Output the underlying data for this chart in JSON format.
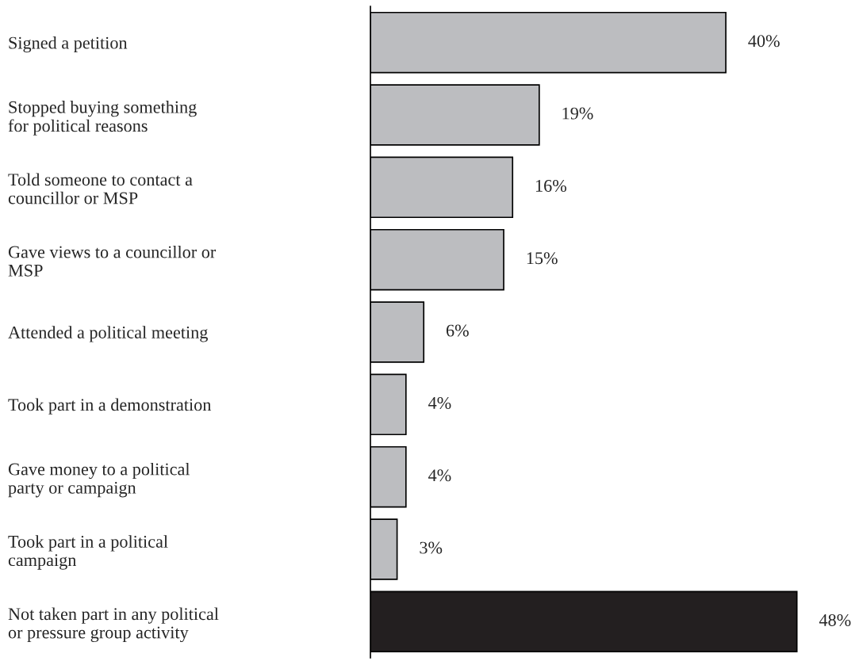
{
  "chart_data": {
    "type": "bar",
    "orientation": "horizontal",
    "categories": [
      "Signed a petition",
      "Stopped buying something\nfor political reasons",
      "Told someone to contact a\ncouncillor or MSP",
      "Gave views to a councillor or\nMSP",
      "Attended a political meeting",
      "Took part in a demonstration",
      "Gave money to a political\nparty or campaign",
      "Took part in a political\ncampaign",
      "Not taken part in any political\nor pressure group activity"
    ],
    "values": [
      40,
      19,
      16,
      15,
      6,
      4,
      4,
      3,
      48
    ],
    "colors": [
      "#bcbdc0",
      "#bcbdc0",
      "#bcbdc0",
      "#bcbdc0",
      "#bcbdc0",
      "#bcbdc0",
      "#bcbdc0",
      "#bcbdc0",
      "#231f20"
    ],
    "value_labels": [
      "40%",
      "19%",
      "16%",
      "15%",
      "6%",
      "4%",
      "4%",
      "3%",
      "48%"
    ],
    "tick_labels": "y",
    "grid": false,
    "legend": false
  }
}
